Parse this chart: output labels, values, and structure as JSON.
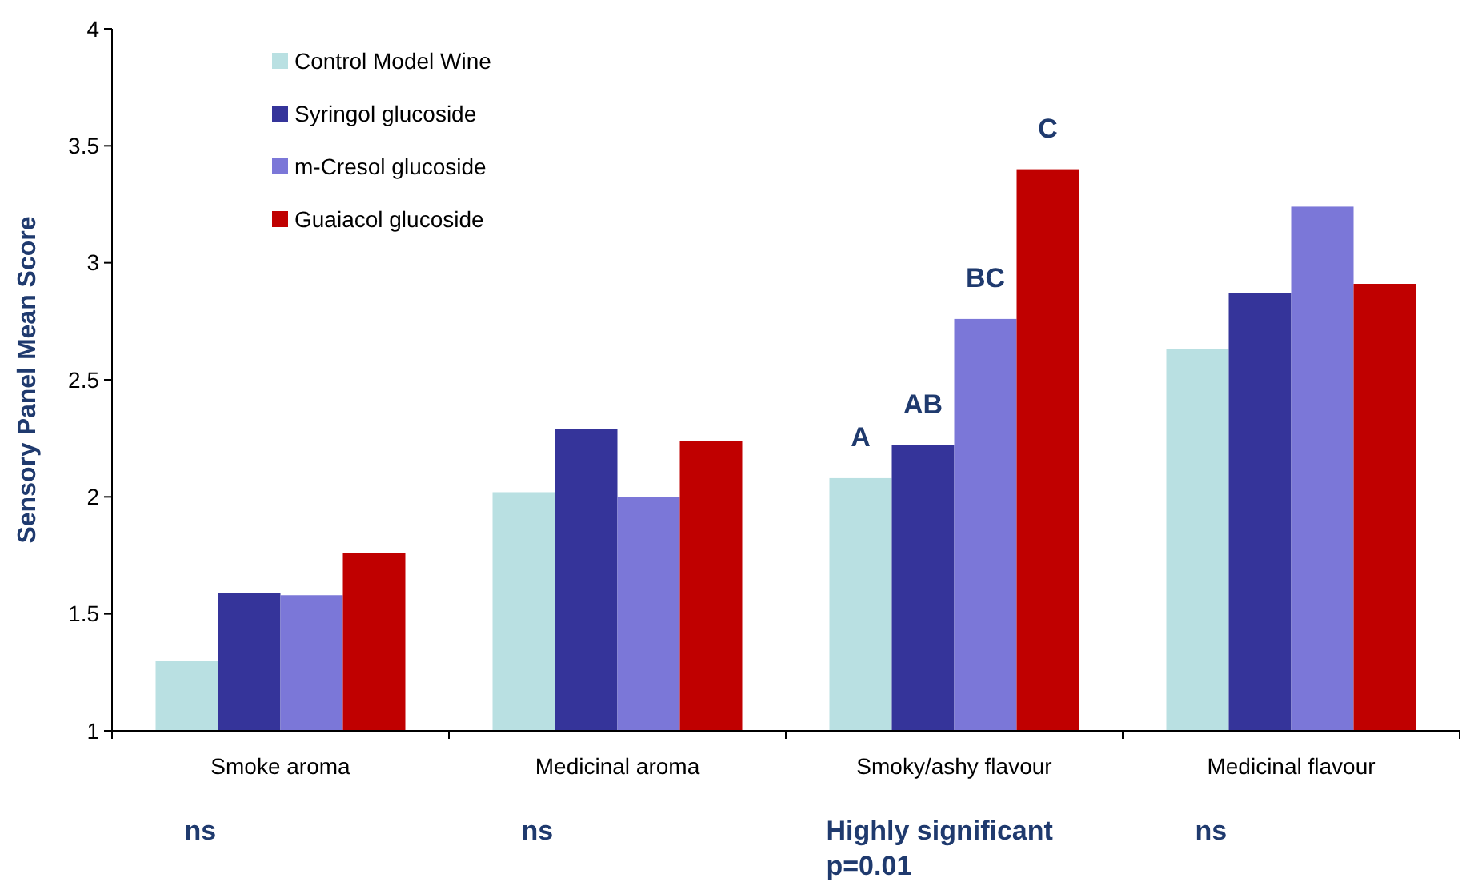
{
  "chart_data": {
    "type": "bar",
    "ylabel": "Sensory Panel Mean Score",
    "categories": [
      "Smoke aroma",
      "Medicinal aroma",
      "Smoky/ashy flavour",
      "Medicinal flavour"
    ],
    "series": [
      {
        "name": "Control Model Wine",
        "color": "#b9e0e2",
        "values": [
          1.3,
          2.02,
          2.08,
          2.63
        ]
      },
      {
        "name": "Syringol glucoside",
        "color": "#35349a",
        "values": [
          1.59,
          2.29,
          2.22,
          2.87
        ]
      },
      {
        "name": "m-Cresol glucoside",
        "color": "#7b77d8",
        "values": [
          1.58,
          2.0,
          2.76,
          3.24
        ]
      },
      {
        "name": "Guaiacol glucoside",
        "color": "#c00000",
        "values": [
          1.76,
          2.24,
          3.4,
          2.91
        ]
      }
    ],
    "ylim": [
      1,
      4
    ],
    "yticks": [
      1,
      1.5,
      2,
      2.5,
      3,
      3.5,
      4
    ],
    "grid": false,
    "legend": "top left",
    "annotations": [
      "A",
      "AB",
      "BC",
      "C",
      "ns",
      "ns",
      "Highly significant\np=0.01",
      "ns"
    ]
  }
}
